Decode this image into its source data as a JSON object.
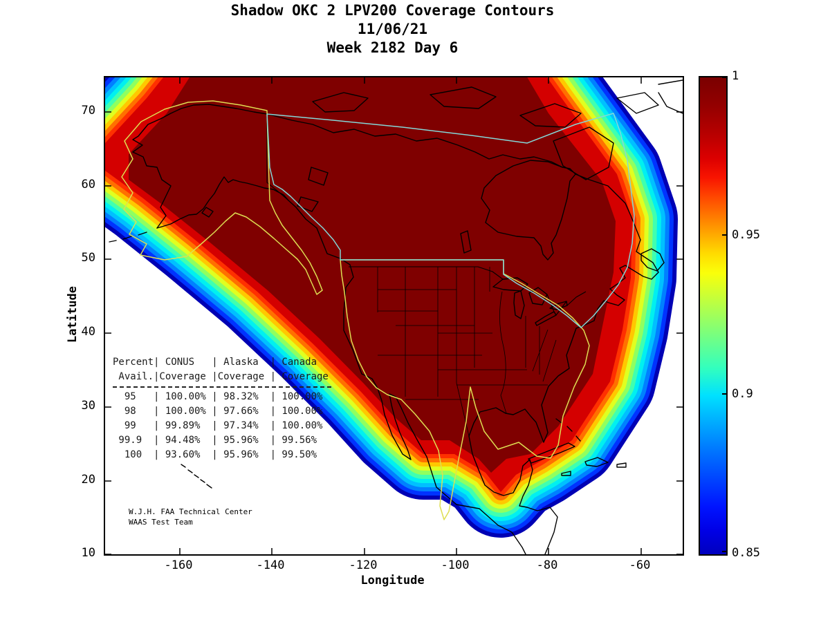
{
  "figure": {
    "title": "Shadow OKC 2 LPV200 Coverage Contours",
    "date_line": "11/06/21",
    "week_line": "Week 2182 Day 6"
  },
  "axes": {
    "xlabel": "Longitude",
    "ylabel": "Latitude",
    "xtick_labels": [
      "-160",
      "-140",
      "-120",
      "-100",
      "-80",
      "-60"
    ],
    "ytick_labels": [
      "70",
      "60",
      "50",
      "40",
      "30",
      "20",
      "10"
    ]
  },
  "colorbar": {
    "tick_labels": [
      "1",
      "0.95",
      "0.9",
      "0.85"
    ],
    "gradient": [
      {
        "p": 0.0,
        "c": "#7a0000"
      },
      {
        "p": 0.06,
        "c": "#940000"
      },
      {
        "p": 0.12,
        "c": "#b80000"
      },
      {
        "p": 0.17,
        "c": "#dc0000"
      },
      {
        "p": 0.21,
        "c": "#f81400"
      },
      {
        "p": 0.25,
        "c": "#ff4600"
      },
      {
        "p": 0.29,
        "c": "#ff7800"
      },
      {
        "p": 0.33,
        "c": "#ffaa00"
      },
      {
        "p": 0.37,
        "c": "#ffdc00"
      },
      {
        "p": 0.41,
        "c": "#faff0a"
      },
      {
        "p": 0.46,
        "c": "#c8ff37"
      },
      {
        "p": 0.51,
        "c": "#96ff64"
      },
      {
        "p": 0.56,
        "c": "#64ff91"
      },
      {
        "p": 0.61,
        "c": "#32ffbe"
      },
      {
        "p": 0.667,
        "c": "#00e1ff"
      },
      {
        "p": 0.72,
        "c": "#00afff"
      },
      {
        "p": 0.78,
        "c": "#0078ff"
      },
      {
        "p": 0.84,
        "c": "#0046ff"
      },
      {
        "p": 0.9,
        "c": "#0014ff"
      },
      {
        "p": 0.95,
        "c": "#0000e6"
      },
      {
        "p": 1.0,
        "c": "#0000be"
      }
    ]
  },
  "overlay_table": {
    "header_lines": [
      "Percent| CONUS   | Alaska  | Canada",
      " Avail.|Coverage |Coverage | Coverage"
    ],
    "rows": [
      "  95   | 100.00% | 98.32%  | 100.00%",
      "  98   | 100.00% | 97.66%  | 100.00%",
      "  99   | 99.89%  | 97.34%  | 100.00%",
      " 99.9  | 94.48%  | 95.96%  | 99.56%",
      "  100  | 93.60%  | 95.96%  | 99.50%"
    ]
  },
  "credit": [
    "W.J.H. FAA Technical Center",
    "WAAS Test Team"
  ],
  "chart_data": {
    "type": "contour",
    "title": "Shadow OKC 2 LPV200 Coverage Contours",
    "subtitle_date": "11/06/21",
    "subtitle_week": "Week 2182 Day 6",
    "xlabel": "Longitude",
    "ylabel": "Latitude",
    "xlim": [
      -176,
      -48
    ],
    "ylim": [
      10,
      75
    ],
    "xticks": [
      -160,
      -140,
      -120,
      -100,
      -80,
      -60
    ],
    "yticks": [
      10,
      20,
      30,
      40,
      50,
      60,
      70
    ],
    "colorbar": {
      "min": 0.85,
      "max": 1.0,
      "ticks": [
        1,
        0.95,
        0.9,
        0.85
      ],
      "colormap": "jet",
      "position": "right"
    },
    "contour_bands": [
      "#0000b4",
      "#0033ff",
      "#0080ff",
      "#00c0ff",
      "#00f0f0",
      "#40ffb0",
      "#90ff60",
      "#e0ff20",
      "#ffc800",
      "#ff7000",
      "#ff3000"
    ],
    "fill_colors": {
      "outer_red": "#d40000",
      "core_maroon": "#7f0000"
    },
    "boundary_colors": {
      "conus_alaska": "#dede52",
      "canada": "#84d8d8"
    },
    "coverage_table": {
      "columns": [
        "Percent Avail.",
        "CONUS Coverage",
        "Alaska Coverage",
        "Canada Coverage"
      ],
      "rows": [
        {
          "percent": "95",
          "conus": "100.00%",
          "alaska": "98.32%",
          "canada": "100.00%"
        },
        {
          "percent": "98",
          "conus": "100.00%",
          "alaska": "97.66%",
          "canada": "100.00%"
        },
        {
          "percent": "99",
          "conus": "99.89%",
          "alaska": "97.34%",
          "canada": "100.00%"
        },
        {
          "percent": "99.9",
          "conus": "94.48%",
          "alaska": "95.96%",
          "canada": "99.56%"
        },
        {
          "percent": "100",
          "conus": "93.60%",
          "alaska": "95.96%",
          "canada": "99.50%"
        }
      ]
    },
    "annotations": [
      "W.J.H. FAA Technical Center",
      "WAAS Test Team"
    ]
  }
}
